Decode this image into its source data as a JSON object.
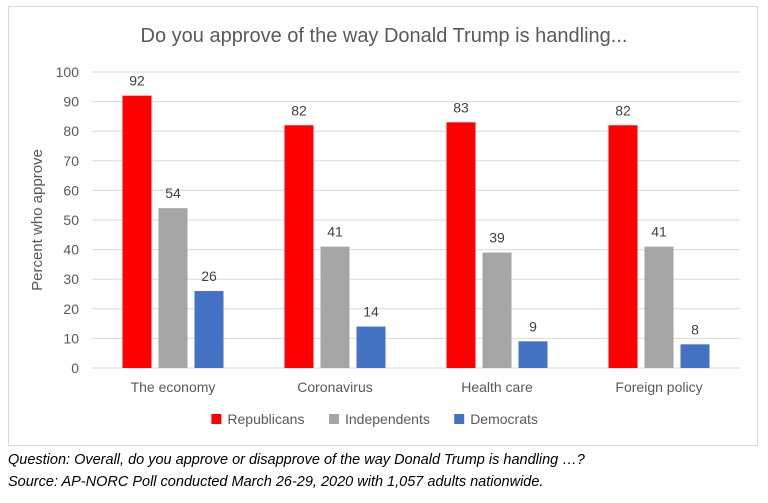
{
  "chart_data": {
    "type": "bar",
    "title": "Do you approve of the way Donald Trump is handling...",
    "ylabel": "Percent who approve",
    "xlabel": "",
    "ylim": [
      0,
      100
    ],
    "yticks": [
      0,
      10,
      20,
      30,
      40,
      50,
      60,
      70,
      80,
      90,
      100
    ],
    "grid": true,
    "legend_position": "bottom",
    "categories": [
      "The economy",
      "Coronavirus",
      "Health care",
      "Foreign policy"
    ],
    "series": [
      {
        "name": "Republicans",
        "color": "#ff0000",
        "values": [
          92,
          82,
          83,
          82
        ]
      },
      {
        "name": "Independents",
        "color": "#a5a5a5",
        "values": [
          54,
          41,
          39,
          41
        ]
      },
      {
        "name": "Democrats",
        "color": "#4472c4",
        "values": [
          26,
          14,
          9,
          8
        ]
      }
    ],
    "data_labels": true
  },
  "notes": {
    "question": "Question: Overall, do you approve or disapprove of the way Donald Trump is handling …?",
    "source": "Source: AP-NORC Poll conducted March 26-29, 2020 with 1,057 adults nationwide."
  }
}
